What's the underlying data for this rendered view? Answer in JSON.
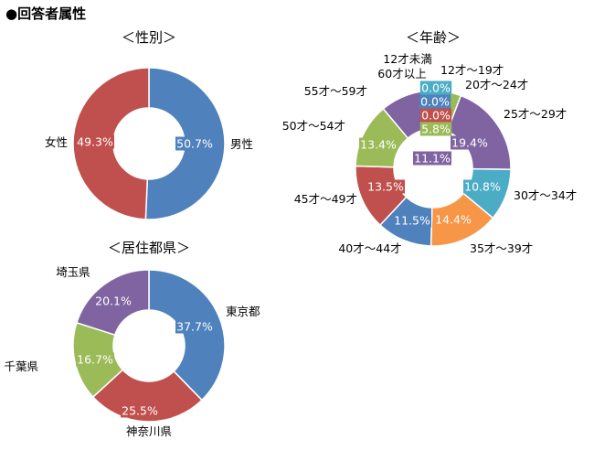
{
  "page_title": "●回答者属性",
  "chart_data": [
    {
      "type": "pie",
      "title": "＜性別＞",
      "categories": [
        "男性",
        "女性"
      ],
      "values": [
        50.7,
        49.3
      ],
      "value_labels": [
        "50.7%",
        "49.3%"
      ],
      "colors": [
        "#4f81bd",
        "#c0504d"
      ]
    },
    {
      "type": "pie",
      "title": "＜居住都県＞",
      "categories": [
        "東京都",
        "神奈川県",
        "千葉県",
        "埼玉県"
      ],
      "values": [
        37.7,
        25.5,
        16.7,
        20.1
      ],
      "value_labels": [
        "37.7%",
        "25.5%",
        "16.7%",
        "20.1%"
      ],
      "colors": [
        "#4f81bd",
        "#c0504d",
        "#9bbb59",
        "#8064a2"
      ]
    },
    {
      "type": "pie",
      "title": "＜年齢＞",
      "categories": [
        "12才未満",
        "12才～19才",
        "20才～24才",
        "25才～29才",
        "30才～34才",
        "35才～39才",
        "40才～44才",
        "45才～49才",
        "50才～54才",
        "55才～59才",
        "60才以上"
      ],
      "values": [
        0.0,
        0.0,
        5.8,
        19.4,
        10.8,
        14.4,
        11.5,
        13.5,
        13.4,
        11.1,
        0.0
      ],
      "value_labels": [
        "0.0%",
        "0.0%",
        "5.8%",
        "19.4%",
        "10.8%",
        "14.4%",
        "11.5%",
        "13.5%",
        "13.4%",
        "11.1%",
        "0.0%"
      ],
      "colors": [
        "#4bacc6",
        "#4f81bd",
        "#9bbb59",
        "#8064a2",
        "#4bacc6",
        "#f79646",
        "#4f81bd",
        "#c0504d",
        "#9bbb59",
        "#8064a2",
        "#c0504d"
      ]
    }
  ]
}
